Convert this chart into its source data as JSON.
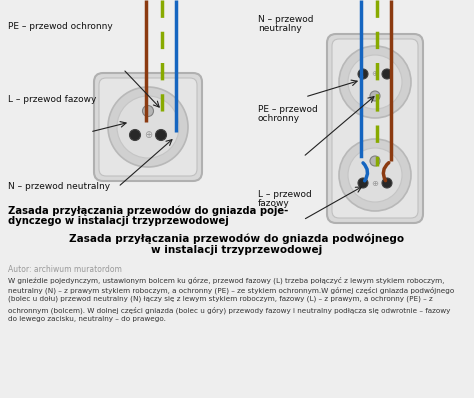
{
  "bg_color": "#eeeeee",
  "color_brown": "#8B3A10",
  "color_green": "#88aa00",
  "color_blue": "#1565C0",
  "label_PE_single": "PE – przewod ochronny",
  "label_L_single": "L – przewod fazowy",
  "label_N_single": "N – przewod neutralny",
  "label_N_double_1": "N – przewod",
  "label_N_double_2": "neutralny",
  "label_PE_double_1": "PE – przewod",
  "label_PE_double_2": "ochronny",
  "label_L_double_1": "L – przewod",
  "label_L_double_2": "fazowy",
  "title_single_1": "Zasada przyłączania przewodów do gniazda poje-",
  "title_single_2": "dynczego w instalacji trzyprzewodowej",
  "title_double_1": "Zasada przyłączania przewodów do gniazda podwójnego",
  "title_double_2": "w instalacji trzyprzewodowej",
  "author": "Autor: archiwum muratordom",
  "body1": "W gnieźdie pojedynczym, ustawionym bolcem ku górze, przewod fazowy (L) trzeba połączyć z lewym stykiem roboczym,",
  "body2": "neutralny (N) – z prawym stykiem roboczym, a ochronny (PE) – ze stykiem ochronnym.W górnej części gniazda podwójnego",
  "body3": "(bolec u dołu) przewod neutralny (N) łączy się z lewym stykiem roboczym, fazowy (L) – z prawym, a ochronny (PE) – z",
  "body4": "ochronnym (bolcem). W dolnej części gniazda (bolec u góry) przewody fazowy i neutralny podłącza się odwrotnie – fazowy",
  "body5": "do lewego zacisku, neutralny – do prawego."
}
